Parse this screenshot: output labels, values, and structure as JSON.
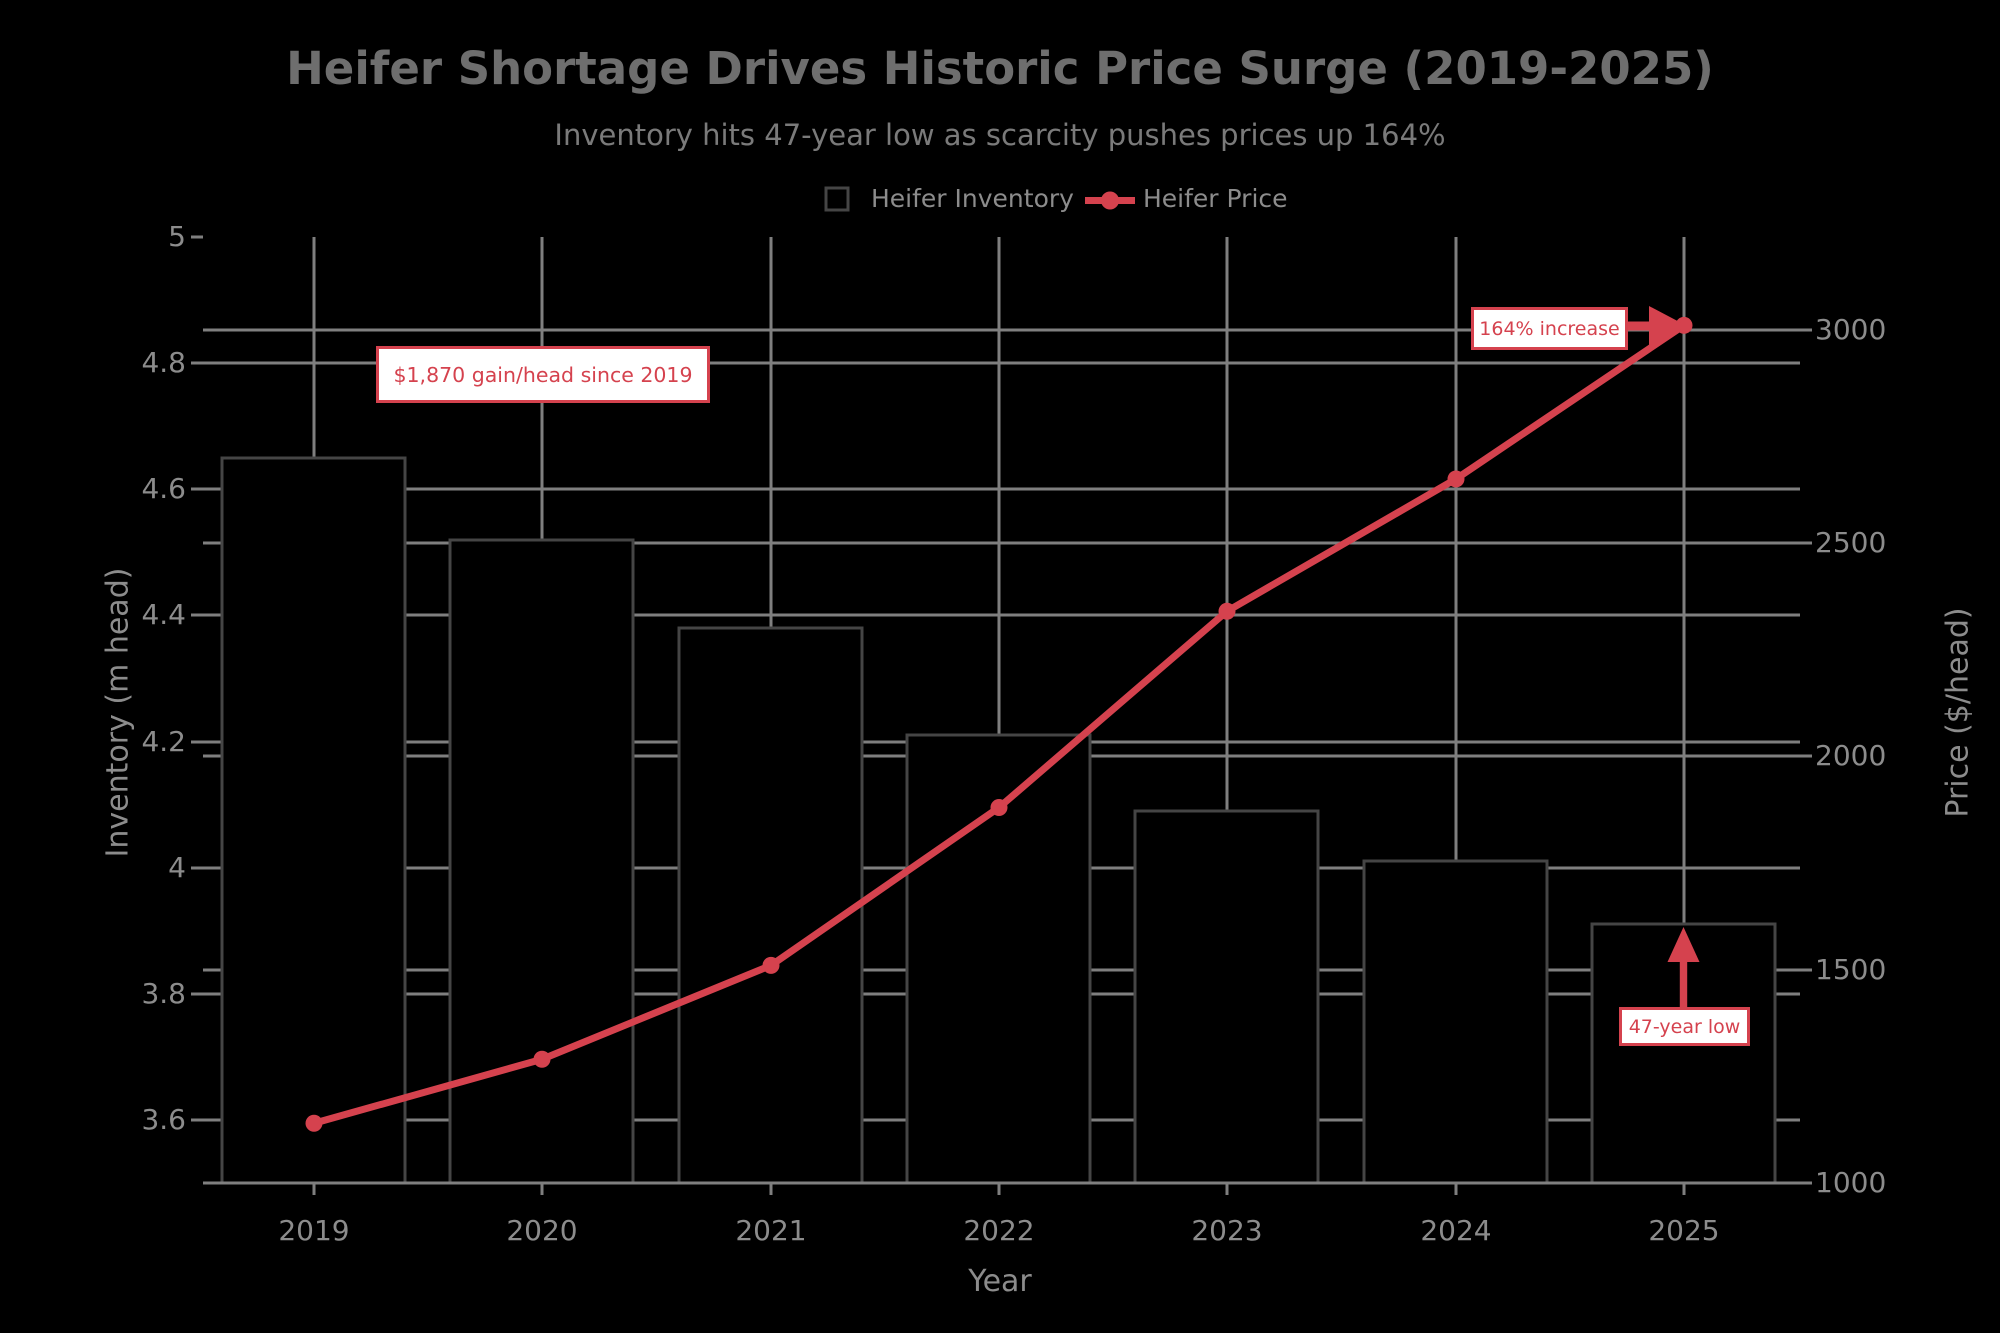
{
  "title": "Heifer Shortage Drives Historic Price Surge (2019-2025)",
  "subtitle": "Inventory hits 47-year low as scarcity pushes prices up 164%",
  "legend": [
    {
      "label": "Heifer Inventory",
      "swatch": "bar-outline-square"
    },
    {
      "label": "Heifer Price",
      "swatch": "red-line-dot"
    }
  ],
  "colors": {
    "background": "#000000",
    "red": "#d5424e",
    "grid": "#7f7f7f",
    "bar_edge": "#454545",
    "bar_fill": "#000000",
    "tick_text": "#8c8c8c",
    "title_text": "#6e6e6e",
    "annotation_bg": "#ffffff"
  },
  "chart_data": {
    "type": "bar+line dual-axis",
    "categories": [
      2019,
      2020,
      2021,
      2022,
      2023,
      2024,
      2025
    ],
    "series": [
      {
        "name": "Heifer Inventory",
        "type": "bar",
        "axis": "left",
        "values": [
          4.65,
          4.52,
          4.38,
          4.21,
          4.09,
          4.01,
          3.91
        ]
      },
      {
        "name": "Heifer Price",
        "type": "line",
        "axis": "right",
        "values": [
          1140,
          1290,
          1510,
          1880,
          2340,
          2650,
          3010
        ]
      }
    ],
    "xlabel": "Year",
    "ylabel_left": "Inventory (m head)",
    "ylabel_right": "Price ($/head)",
    "ylim_left": [
      3.5,
      5.0
    ],
    "ylim_right": [
      1000,
      3217
    ],
    "yticks_left": [
      "3.6",
      "3.8",
      "4",
      "4.2",
      "4.4",
      "4.6",
      "4.8",
      "5"
    ],
    "yticks_right": [
      "1000",
      "1500",
      "2000",
      "2500",
      "3000"
    ],
    "grid": true,
    "legend_position": "upper center",
    "annotations": [
      {
        "text": "$1,870 gain/head since 2019"
      },
      {
        "text": "164% increase",
        "arrow": "points right to 2025 price point"
      },
      {
        "text": "47-year low",
        "arrow": "points up to 2025 bar top"
      }
    ]
  }
}
